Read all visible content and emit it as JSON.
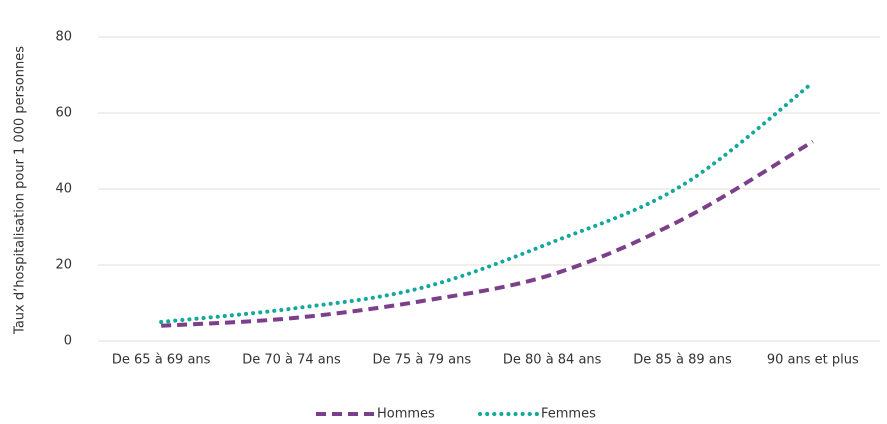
{
  "chart_data": {
    "type": "line",
    "y_label": "Taux d’hospitalisation pour 1 000 personnes",
    "categories": [
      "De 65 à 69 ans",
      "De 70 à 74 ans",
      "De 75 à 79 ans",
      "De 80 à 84 ans",
      "De 85 à 89 ans",
      "90 ans et plus"
    ],
    "series": [
      {
        "name": "Hommes",
        "color": "#7b3f8c",
        "style": "dashed",
        "values": [
          4,
          6,
          10.5,
          17.5,
          32,
          52.5
        ]
      },
      {
        "name": "Femmes",
        "color": "#14a89a",
        "style": "dotted",
        "values": [
          5,
          8.5,
          14,
          26,
          41,
          68
        ]
      }
    ],
    "ylim": [
      0,
      80
    ],
    "yticks": [
      0,
      20,
      40,
      60,
      80
    ],
    "grid": true,
    "legend": "bottom"
  }
}
